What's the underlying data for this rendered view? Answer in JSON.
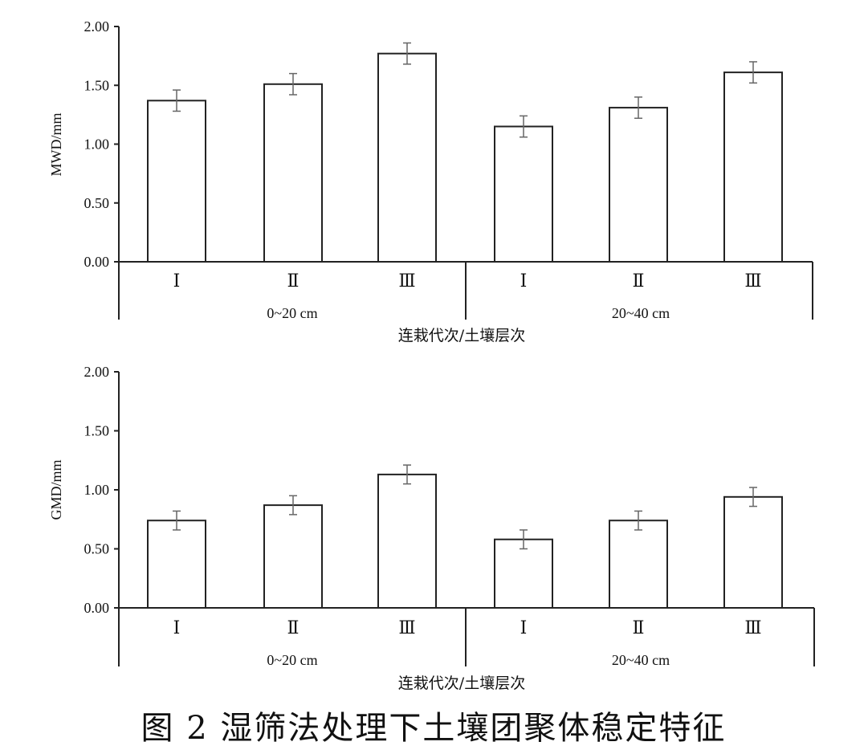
{
  "caption": "图 2   湿筛法处理下土壤团聚体稳定特征",
  "chart_data": [
    {
      "type": "bar",
      "ylabel": "MWD/mm",
      "xlabel": "连栽代次/土壤层次",
      "ylim": [
        0,
        2.0
      ],
      "yticks": [
        "0.00",
        "0.50",
        "1.00",
        "1.50",
        "2.00"
      ],
      "groups": [
        "0~20 cm",
        "20~40 cm"
      ],
      "categories": [
        "Ⅰ",
        "Ⅱ",
        "Ⅲ",
        "Ⅰ",
        "Ⅱ",
        "Ⅲ"
      ],
      "values": [
        1.37,
        1.51,
        1.77,
        1.15,
        1.31,
        1.61
      ],
      "errors": [
        0.09,
        0.09,
        0.09,
        0.09,
        0.09,
        0.09
      ]
    },
    {
      "type": "bar",
      "ylabel": "GMD/mm",
      "xlabel": "连栽代次/土壤层次",
      "ylim": [
        0,
        2.0
      ],
      "yticks": [
        "0.00",
        "0.50",
        "1.00",
        "1.50",
        "2.00"
      ],
      "groups": [
        "0~20 cm",
        "20~40 cm"
      ],
      "categories": [
        "Ⅰ",
        "Ⅱ",
        "Ⅲ",
        "Ⅰ",
        "Ⅱ",
        "Ⅲ"
      ],
      "values": [
        0.74,
        0.87,
        1.13,
        0.58,
        0.74,
        0.94
      ],
      "errors": [
        0.08,
        0.08,
        0.08,
        0.08,
        0.08,
        0.08
      ]
    }
  ]
}
